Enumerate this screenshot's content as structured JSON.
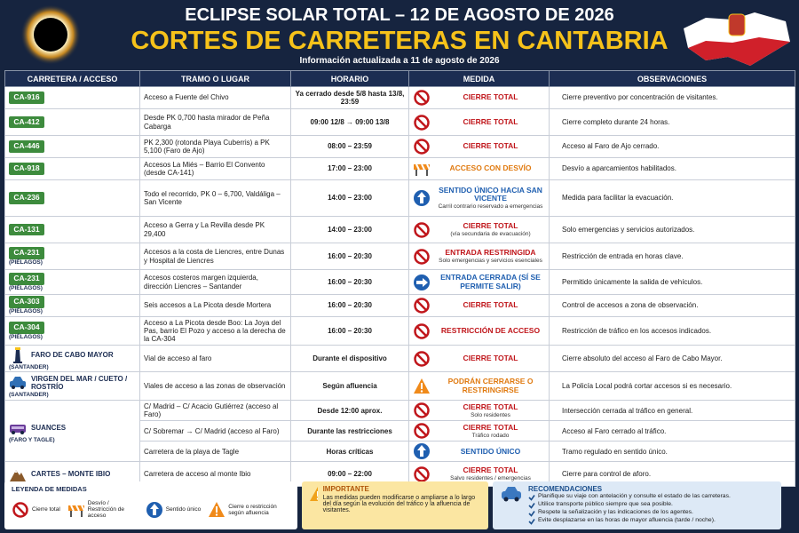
{
  "header": {
    "title": "ECLIPSE SOLAR TOTAL – 12 DE AGOSTO DE 2026",
    "subtitle": "CORTES DE CARRETERAS EN CANTABRIA",
    "updated": "Información actualizada a 11 de agosto de 2026"
  },
  "table": {
    "columns": [
      "CARRETERA / ACCESO",
      "TRAMO O LUGAR",
      "HORARIO",
      "MEDIDA",
      "OBSERVACIONES"
    ],
    "rows": [
      {
        "road": "CA-916",
        "place": "Acceso a Fuente del Chivo",
        "schedule": "Ya cerrado desde 5/8 hasta 13/8, 23:59",
        "measure": "CIERRE TOTAL",
        "observations": "Cierre preventivo por concentración de visitantes."
      },
      {
        "road": "CA-412",
        "place": "Desde PK 0,700 hasta mirador de Peña Cabarga",
        "schedule": "09:00 12/8 → 09:00 13/8",
        "measure": "CIERRE TOTAL",
        "observations": "Cierre completo durante 24 horas."
      },
      {
        "road": "CA-446",
        "place": "PK 2,300 (rotonda Playa Cuberris) a PK 5,100 (Faro de Ajo)",
        "schedule": "08:00 – 23:59",
        "measure": "CIERRE TOTAL",
        "observations": "Acceso al Faro de Ajo cerrado."
      },
      {
        "road": "CA-918",
        "place": "Accesos La Miés – Barrio El Convento (desde CA-141)",
        "schedule": "17:00 – 23:00",
        "measure": "ACCESO CON DESVÍO",
        "observations": "Desvío a aparcamientos habilitados."
      },
      {
        "road": "CA-236",
        "place": "Todo el recorrido, PK 0 – 6,700, Valdáliga – San Vicente",
        "schedule": "14:00 – 23:00",
        "measure": "SENTIDO ÚNICO HACIA SAN VICENTE",
        "measure_note": "Carril contrario reservado a emergencias",
        "observations": "Medida para facilitar la evacuación."
      },
      {
        "road": "CA-131",
        "place": "Acceso a Gerra y La Revilla desde PK 29,400",
        "schedule": "14:00 – 23:00",
        "measure": "CIERRE TOTAL",
        "measure_note": "(vía secundaria de evacuación)",
        "observations": "Solo emergencias y servicios autorizados."
      },
      {
        "road": "CA-231",
        "road_note": "(PIÉLAGOS)",
        "place": "Accesos a la costa de Liencres, entre Dunas y Hospital de Liencres",
        "schedule": "16:00 – 20:30",
        "measure": "ENTRADA RESTRINGIDA",
        "measure_note": "Solo emergencias y servicios esenciales",
        "observations": "Restricción de entrada en horas clave."
      },
      {
        "road": "CA-231",
        "road_note": "(PIÉLAGOS)",
        "place": "Accesos costeros margen izquierda, dirección Liencres – Santander",
        "schedule": "16:00 – 20:30",
        "measure": "ENTRADA CERRADA (SÍ SE PERMITE SALIR)",
        "observations": "Permitido únicamente la salida de vehículos."
      },
      {
        "road": "CA-303",
        "road_note": "(PIÉLAGOS)",
        "place": "Seis accesos a La Picota desde Mortera",
        "schedule": "16:00 – 20:30",
        "measure": "CIERRE TOTAL",
        "observations": "Control de accesos a zona de observación."
      },
      {
        "road": "CA-304",
        "road_note": "(PIÉLAGOS)",
        "place": "Acceso a La Picota desde Boo: La Joya del Pas, barrio El Pozo y acceso a la derecha de la CA-304",
        "schedule": "16:00 – 20:30",
        "measure": "RESTRICCIÓN DE ACCESO",
        "observations": "Restricción de tráfico en los accesos indicados."
      },
      {
        "road": "FARO DE CABO MAYOR",
        "road_note": "(SANTANDER)",
        "place": "Vial de acceso al faro",
        "schedule": "Durante el dispositivo",
        "measure": "CIERRE TOTAL",
        "observations": "Cierre absoluto del acceso al Faro de Cabo Mayor."
      },
      {
        "road": "VIRGEN DEL MAR / CUETO / ROSTRÍO",
        "road_note": "(SANTANDER)",
        "place": "Viales de acceso a las zonas de observación",
        "schedule": "Según afluencia",
        "measure": "PODRÁN CERRARSE O RESTRINGIRSE",
        "observations": "La Policía Local podrá cortar accesos si es necesario."
      },
      {
        "road": "SUANCES",
        "road_note": "(FARO Y TAGLE)",
        "place": "C/ Madrid – C/ Acacio Gutiérrez (acceso al Faro)",
        "schedule": "Desde 12:00 aprox.",
        "measure": "CIERRE TOTAL",
        "measure_note": "Solo residentes",
        "observations": "Intersección cerrada al tráfico en general."
      },
      {
        "place": "C/ Sobremar → C/ Madrid (acceso al Faro)",
        "schedule": "Durante las restricciones",
        "measure": "CIERRE TOTAL",
        "measure_note": "Tráfico rodado",
        "observations": "Acceso al Faro cerrado al tráfico."
      },
      {
        "place": "Carretera de la playa de Tagle",
        "schedule": "Horas críticas",
        "measure": "SENTIDO ÚNICO",
        "observations": "Tramo regulado en sentido único."
      },
      {
        "road": "CARTES – MONTE IBIO",
        "place": "Carretera de acceso al monte Ibio",
        "schedule": "09:00 – 22:00",
        "measure": "CIERRE TOTAL",
        "measure_note": "Salvo residentes / emergencias",
        "observations": "Cierre para control de aforo."
      }
    ]
  },
  "legend": {
    "title": "LEYENDA DE MEDIDAS",
    "items": [
      "Cierre total",
      "Desvío / Restricción de acceso",
      "Sentido único",
      "Cierre o restricción según afluencia"
    ]
  },
  "important": {
    "title": "IMPORTANTE",
    "text": "Las medidas pueden modificarse o ampliarse a lo largo del día según la evolución del tráfico y la afluencia de visitantes."
  },
  "recommendations": {
    "title": "RECOMENDACIONES",
    "items": [
      "Planifique su viaje con antelación y consulte el estado de las carreteras.",
      "Utilice transporte público siempre que sea posible.",
      "Respete la señalización y las indicaciones de los agentes.",
      "Evite desplazarse en las horas de mayor afluencia (tarde / noche)."
    ]
  }
}
